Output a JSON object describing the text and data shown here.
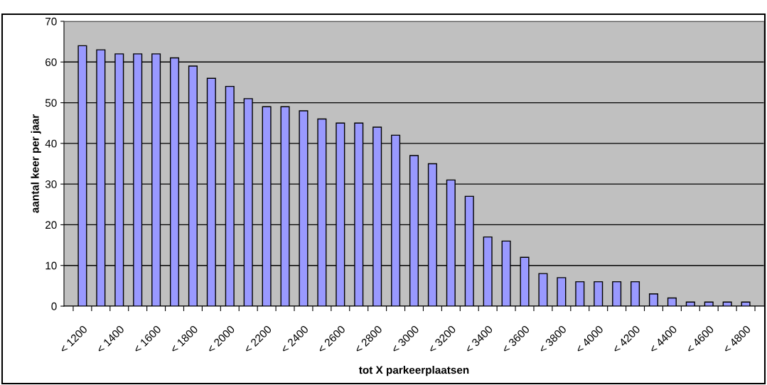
{
  "chart_data": {
    "type": "bar",
    "xlabel": "tot X parkeerplaatsen",
    "ylabel": "aantal keer per jaar",
    "categories": [
      "< 1200",
      null,
      "< 1400",
      null,
      "< 1600",
      null,
      "< 1800",
      null,
      "< 2000",
      null,
      "< 2200",
      null,
      "< 2400",
      null,
      "< 2600",
      null,
      "< 2800",
      null,
      "< 3000",
      null,
      "< 3200",
      null,
      "< 3400",
      null,
      "< 3600",
      null,
      "< 3800",
      null,
      "< 4000",
      null,
      "< 4200",
      null,
      "< 4400",
      null,
      "< 4600",
      null,
      "< 4800"
    ],
    "values": [
      64,
      63,
      62,
      62,
      62,
      61,
      59,
      56,
      54,
      51,
      49,
      49,
      48,
      46,
      45,
      45,
      44,
      42,
      37,
      35,
      31,
      27,
      17,
      16,
      12,
      8,
      7,
      6,
      6,
      6,
      6,
      3,
      2,
      1,
      1,
      1,
      1
    ],
    "color": "#9999ff",
    "ylim": [
      0,
      70
    ],
    "yticks": [
      0,
      10,
      20,
      30,
      40,
      50,
      60,
      70
    ],
    "grid": "y",
    "legend": false
  }
}
